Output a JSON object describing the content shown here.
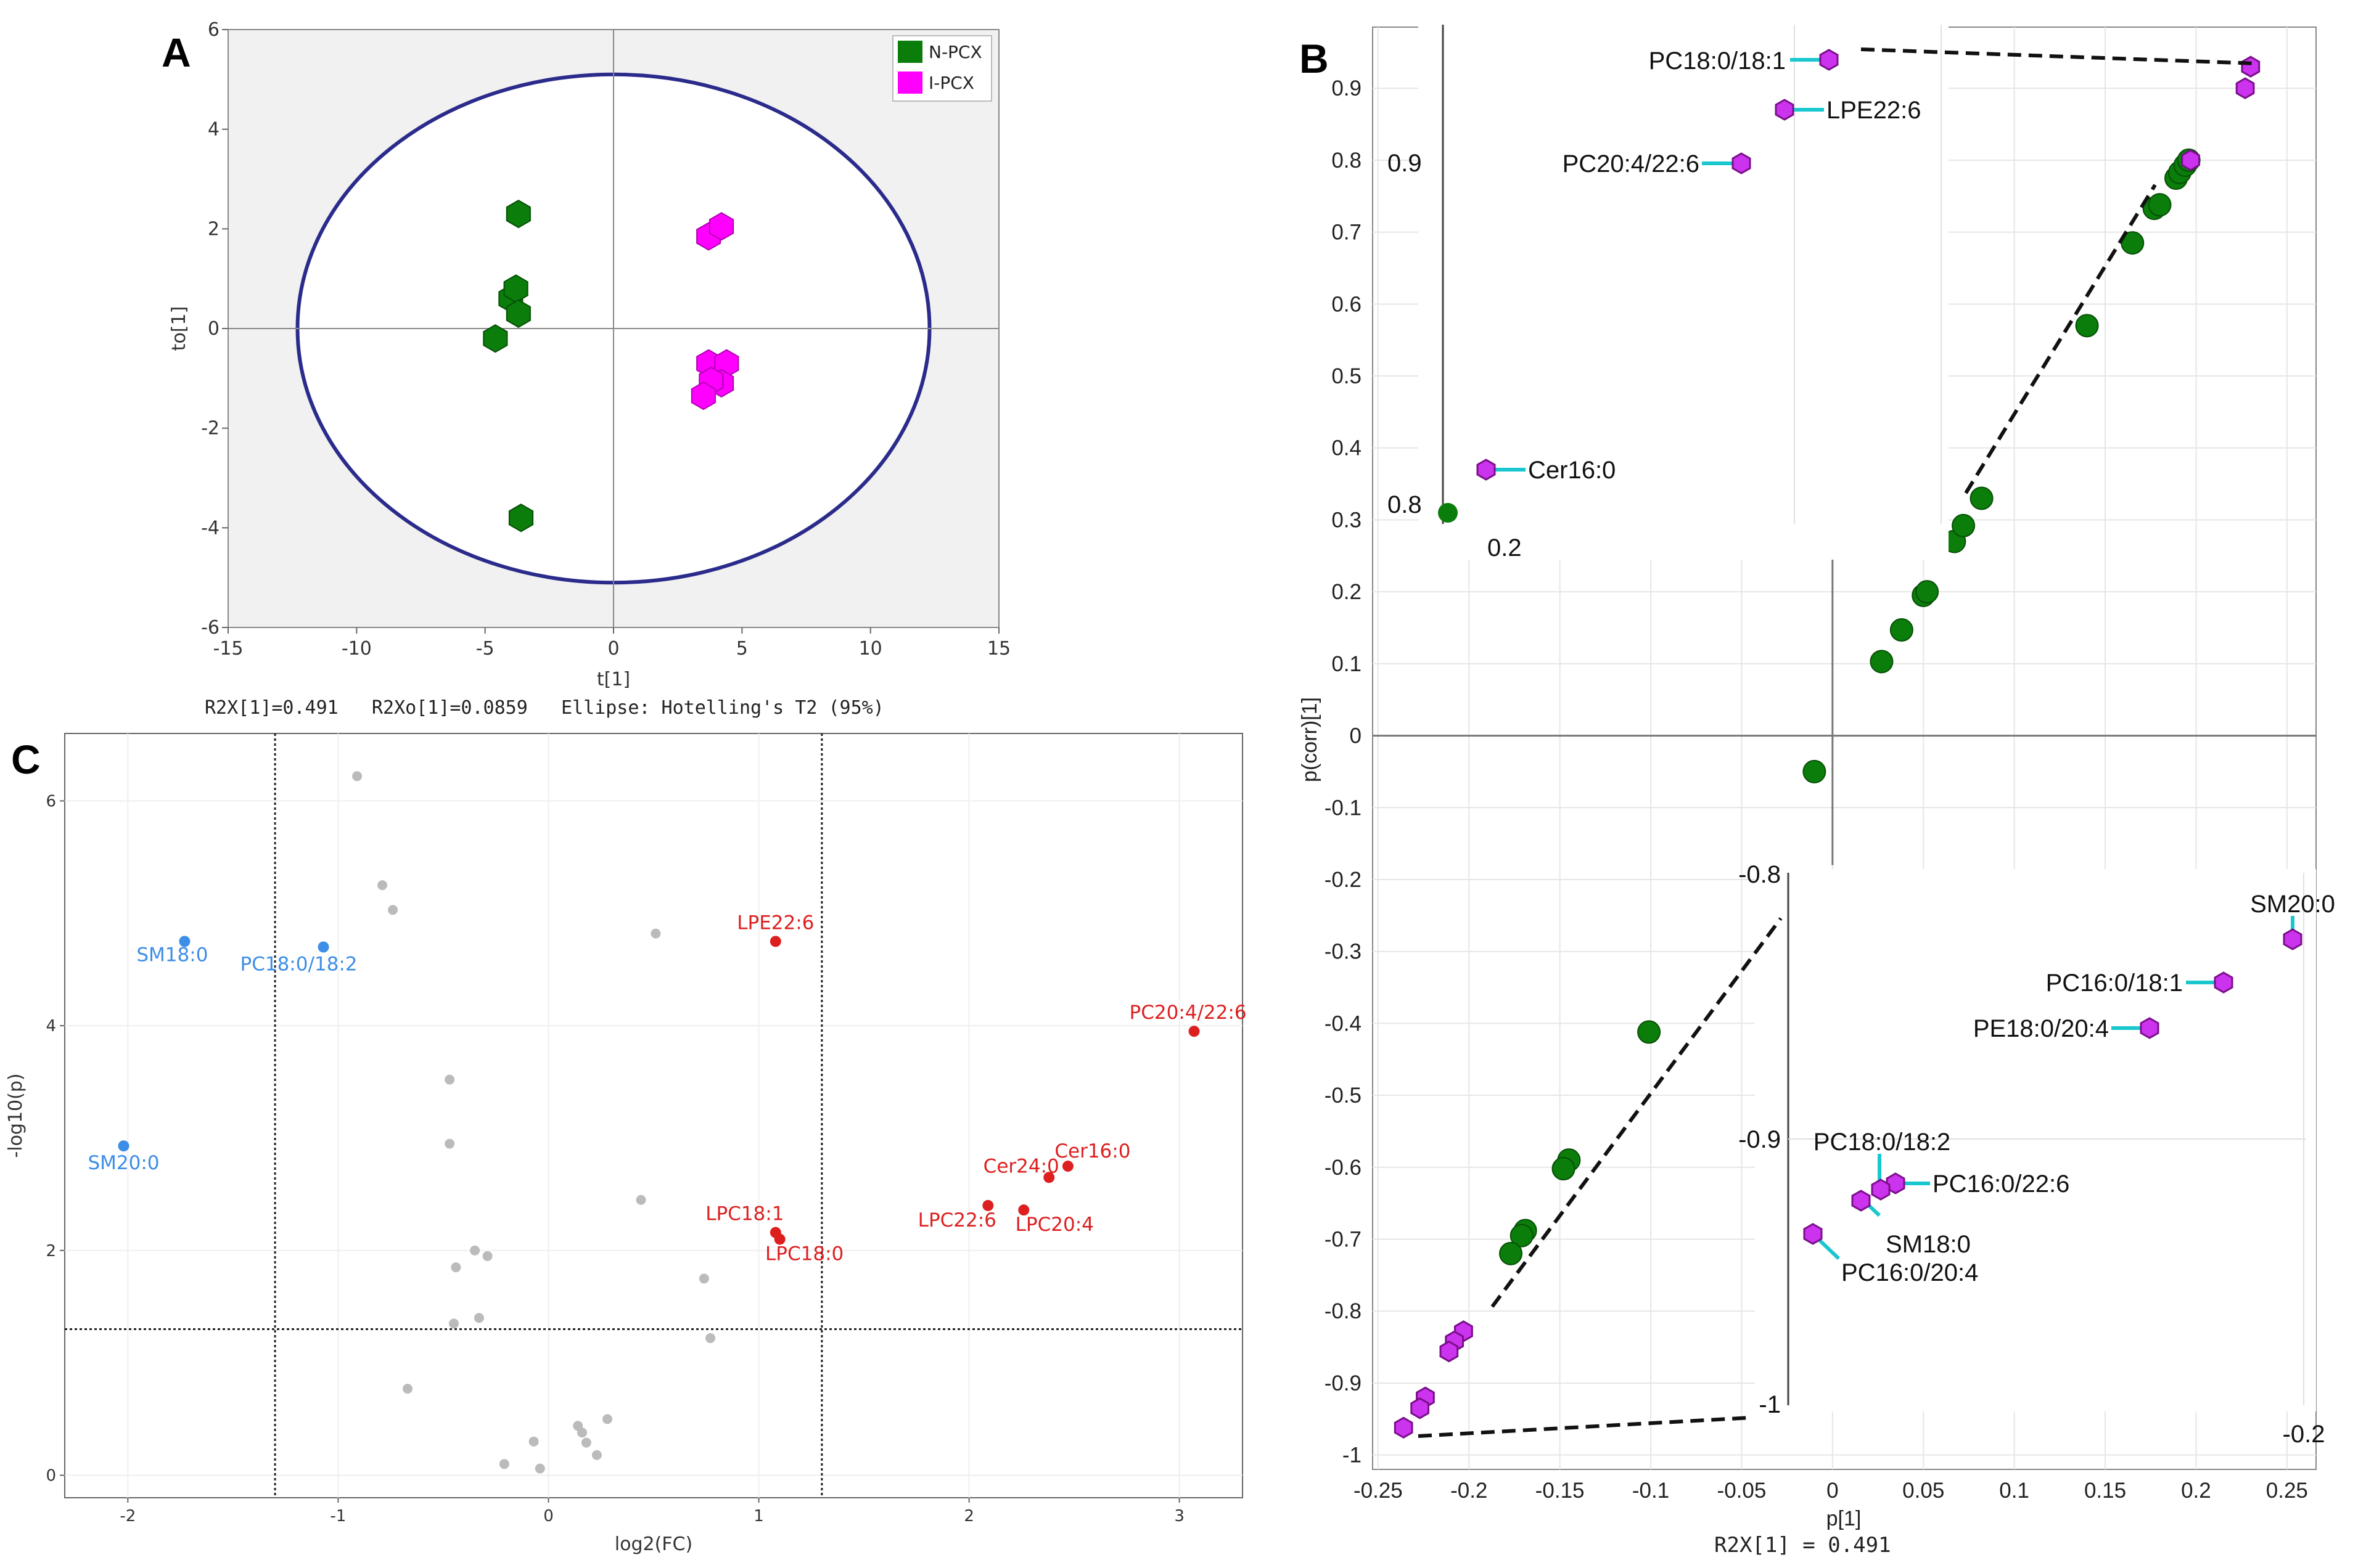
{
  "panels": {
    "A": "A",
    "B": "B",
    "C": "C"
  },
  "chart_data": [
    {
      "id": "A",
      "type": "scatter",
      "title": "",
      "xlabel": "t[1]",
      "ylabel": "to[1]",
      "xlim": [
        -15,
        15
      ],
      "ylim": [
        -6,
        6
      ],
      "xticks": [
        -15,
        -10,
        -5,
        0,
        5,
        10,
        15
      ],
      "yticks": [
        -6,
        -4,
        -2,
        0,
        2,
        4,
        6
      ],
      "footer": "R2X[1]=0.491   R2Xo[1]=0.0859   Ellipse: Hotelling's T2 (95%)",
      "legend": [
        "N-PCX",
        "I-PCX"
      ],
      "colors": {
        "N-PCX": "#0a7d0a",
        "I-PCX": "#ff00ff"
      },
      "ellipse": {
        "rx": 12.3,
        "ry": 5.1
      },
      "series": [
        {
          "name": "N-PCX",
          "points": [
            [
              -3.7,
              2.3
            ],
            [
              -4.0,
              0.6
            ],
            [
              -3.8,
              0.8
            ],
            [
              -3.7,
              0.3
            ],
            [
              -4.6,
              -0.2
            ],
            [
              -3.6,
              -3.8
            ]
          ]
        },
        {
          "name": "I-PCX",
          "points": [
            [
              3.7,
              1.85
            ],
            [
              4.2,
              2.05
            ],
            [
              3.7,
              -0.7
            ],
            [
              4.4,
              -0.7
            ],
            [
              4.2,
              -1.1
            ],
            [
              3.8,
              -1.05
            ],
            [
              3.5,
              -1.35
            ]
          ]
        }
      ]
    },
    {
      "id": "B",
      "type": "scatter",
      "title": "",
      "xlabel": "p[1]",
      "ylabel": "p(corr)[1]",
      "xlim": [
        -0.25,
        0.25
      ],
      "ylim": [
        -1.0,
        1.0
      ],
      "xticks": [
        -0.25,
        -0.2,
        -0.15,
        -0.1,
        -0.05,
        0,
        0.05,
        0.1,
        0.15,
        0.2,
        0.25
      ],
      "xtick_labels": [
        "-0.25",
        "-0.2",
        "-0.15",
        "-0.1",
        "-0.05",
        "0",
        "0.05",
        "0.1",
        "0.15",
        "0.2",
        "0.25"
      ],
      "yticks": [
        -1.0,
        -0.9,
        -0.8,
        -0.7,
        -0.6,
        -0.5,
        -0.4,
        -0.3,
        -0.2,
        -0.1,
        0,
        0.1,
        0.2,
        0.3,
        0.4,
        0.5,
        0.6,
        0.7,
        0.8,
        0.9
      ],
      "ytick_labels": [
        "-1",
        "-0.9",
        "-0.8",
        "-0.7",
        "-0.6",
        "-0.5",
        "-0.4",
        "-0.3",
        "-0.2",
        "-0.1",
        "0",
        "0.1",
        "0.2",
        "0.3",
        "0.4",
        "0.5",
        "0.6",
        "0.7",
        "0.8",
        "0.9"
      ],
      "footer": "R2X[1] = 0.491",
      "green_points": [
        [
          -0.01,
          -0.05
        ],
        [
          0.027,
          0.103
        ],
        [
          0.038,
          0.147
        ],
        [
          0.05,
          0.195
        ],
        [
          0.052,
          0.2
        ],
        [
          0.067,
          0.27
        ],
        [
          0.072,
          0.292
        ],
        [
          0.082,
          0.33
        ],
        [
          0.14,
          0.57
        ],
        [
          0.165,
          0.685
        ],
        [
          0.177,
          0.733
        ],
        [
          0.18,
          0.738
        ],
        [
          0.189,
          0.775
        ],
        [
          0.191,
          0.783
        ],
        [
          0.194,
          0.793
        ],
        [
          0.196,
          0.8
        ],
        [
          -0.101,
          -0.412
        ],
        [
          -0.145,
          -0.59
        ],
        [
          -0.148,
          -0.602
        ],
        [
          -0.169,
          -0.688
        ],
        [
          -0.171,
          -0.695
        ],
        [
          -0.177,
          -0.72
        ]
      ],
      "magenta_points": [
        [
          0.197,
          0.8
        ],
        [
          0.227,
          0.9
        ],
        [
          0.23,
          0.93
        ],
        [
          -0.203,
          -0.828
        ],
        [
          -0.208,
          -0.842
        ],
        [
          -0.211,
          -0.856
        ],
        [
          -0.224,
          -0.92
        ],
        [
          -0.227,
          -0.935
        ],
        [
          -0.236,
          -0.962
        ]
      ],
      "inset_top": {
        "xtick_label": "0.2",
        "ytick_labels": [
          "0.9",
          "0.8"
        ],
        "labels": [
          "PC18:0/18:1",
          "LPE22:6",
          "PC20:4/22:6",
          "Cer16:0"
        ]
      },
      "inset_bottom": {
        "xtick_label": "-0.2",
        "ytick_labels": [
          "-0.8",
          "-0.9",
          "-1"
        ],
        "labels": [
          "SM20:0",
          "PC16:0/18:1",
          "PE18:0/20:4",
          "PC18:0/18:2",
          "PC16:0/22:6",
          "SM18:0",
          "PC16:0/20:4"
        ]
      }
    },
    {
      "id": "C",
      "type": "scatter",
      "title": "",
      "xlabel": "log2(FC)",
      "ylabel": "-log10(p)",
      "xlim": [
        -2.3,
        3.3
      ],
      "ylim": [
        -0.2,
        6.6
      ],
      "xticks": [
        -2,
        -1,
        0,
        1,
        2,
        3
      ],
      "yticks": [
        0,
        2,
        4,
        6
      ],
      "thresholds": {
        "x": [
          -1.3,
          1.3
        ],
        "y": 1.3
      },
      "colors": {
        "down": "#3d8ee6",
        "up": "#dd1f1f",
        "ns": "#bbbbbb"
      },
      "down": [
        {
          "label": "SM18:0",
          "x": -1.73,
          "y": 4.75
        },
        {
          "label": "PC18:0/18:2",
          "x": -1.07,
          "y": 4.7
        },
        {
          "label": "SM20:0",
          "x": -2.02,
          "y": 2.93
        }
      ],
      "up": [
        {
          "label": "LPE22:6",
          "x": 1.08,
          "y": 4.75
        },
        {
          "label": "PC20:4/22:6",
          "x": 3.07,
          "y": 3.95
        },
        {
          "label": "Cer16:0",
          "x": 2.47,
          "y": 2.75
        },
        {
          "label": "Cer24:0",
          "x": 2.38,
          "y": 2.65
        },
        {
          "label": "LPC22:6",
          "x": 2.09,
          "y": 2.4
        },
        {
          "label": "LPC20:4",
          "x": 2.26,
          "y": 2.36
        },
        {
          "label": "LPC18:1",
          "x": 1.08,
          "y": 2.16
        },
        {
          "label": "LPC18:0",
          "x": 1.1,
          "y": 2.1
        }
      ],
      "ns": [
        [
          -0.91,
          6.22
        ],
        [
          -0.79,
          5.25
        ],
        [
          -0.74,
          5.03
        ],
        [
          0.51,
          4.82
        ],
        [
          -0.47,
          3.52
        ],
        [
          -0.47,
          2.95
        ],
        [
          0.44,
          2.45
        ],
        [
          -0.35,
          2.0
        ],
        [
          -0.29,
          1.95
        ],
        [
          -0.44,
          1.85
        ],
        [
          0.74,
          1.75
        ],
        [
          -0.33,
          1.4
        ],
        [
          -0.45,
          1.35
        ],
        [
          0.77,
          1.22
        ],
        [
          -0.67,
          0.77
        ],
        [
          0.28,
          0.5
        ],
        [
          0.14,
          0.44
        ],
        [
          0.16,
          0.38
        ],
        [
          -0.07,
          0.3
        ],
        [
          0.18,
          0.29
        ],
        [
          0.23,
          0.18
        ],
        [
          -0.21,
          0.1
        ],
        [
          -0.04,
          0.06
        ]
      ]
    }
  ]
}
